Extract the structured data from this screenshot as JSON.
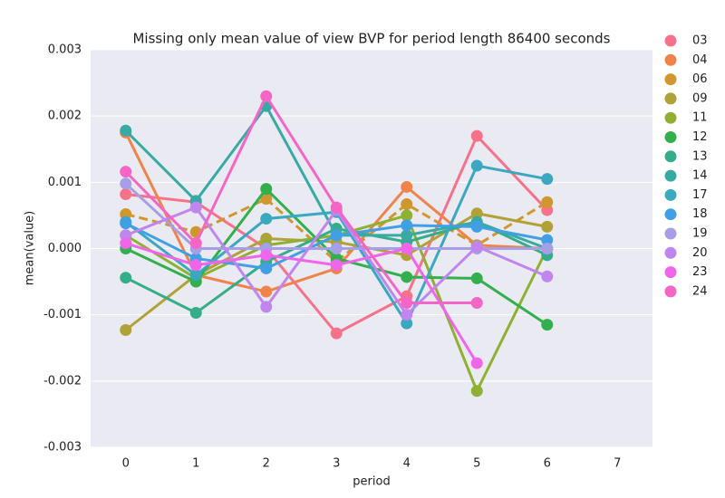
{
  "chart_data": {
    "type": "line",
    "title": "Missing only mean value of view BVP for period length 86400 seconds",
    "xlabel": "period",
    "ylabel": "mean(value)",
    "x": [
      0,
      1,
      2,
      3,
      4,
      5,
      6
    ],
    "xlim": [
      -0.5,
      7.5
    ],
    "xticks": [
      0,
      1,
      2,
      3,
      4,
      5,
      6,
      7
    ],
    "ylim": [
      -0.003,
      0.003
    ],
    "yticks": [
      -0.003,
      -0.002,
      -0.001,
      {
        "value": 0,
        "label": "0.000"
      },
      0.001,
      0.002,
      0.003
    ],
    "grid": true,
    "legend": "outside right",
    "series": [
      {
        "name": "03",
        "color": "#f77189",
        "values": [
          0.00082,
          0.0007,
          0.0,
          -0.00128,
          -0.00072,
          0.0017,
          0.00058
        ]
      },
      {
        "name": "04",
        "color": "#f0834a",
        "values": [
          0.00175,
          -0.0004,
          -0.00065,
          -0.0003,
          0.00093,
          5e-05,
          0.0
        ]
      },
      {
        "name": "06",
        "color": "#d0972f",
        "dashed": true,
        "values": [
          0.00052,
          0.00025,
          0.00075,
          -0.0002,
          0.00067,
          5e-05,
          0.0007
        ]
      },
      {
        "name": "09",
        "color": "#b0a236",
        "values": [
          -0.00123,
          -0.0004,
          0.00015,
          0.0001,
          -0.0001,
          0.00053,
          0.00033
        ]
      },
      {
        "name": "11",
        "color": "#8fb032",
        "values": [
          0.0002,
          -0.00045,
          5e-05,
          0.0002,
          0.0005,
          -0.00215,
          0.0
        ]
      },
      {
        "name": "12",
        "color": "#33b04e",
        "values": [
          0.0,
          -0.0005,
          0.0009,
          -0.00015,
          -0.00043,
          -0.00045,
          -0.00115
        ]
      },
      {
        "name": "13",
        "color": "#36ad8a",
        "values": [
          -0.00044,
          -0.00097,
          -0.0002,
          0.0003,
          0.0001,
          0.0004,
          -0.0001
        ]
      },
      {
        "name": "14",
        "color": "#38aaa4",
        "values": [
          0.00178,
          0.00072,
          0.00215,
          0.0002,
          0.0002,
          0.0004,
          0.0
        ]
      },
      {
        "name": "17",
        "color": "#3aa8c1",
        "values": [
          0.0004,
          -0.0004,
          0.00045,
          0.00055,
          -0.00113,
          0.00125,
          0.00105
        ]
      },
      {
        "name": "18",
        "color": "#41a0e5",
        "values": [
          0.00038,
          -0.00015,
          -0.0003,
          0.0002,
          0.00035,
          0.00033,
          0.00013
        ]
      },
      {
        "name": "19",
        "color": "#a79ee8",
        "values": [
          0.00098,
          0.0,
          0.0,
          0.0,
          0.0,
          0.0,
          0.0
        ]
      },
      {
        "name": "20",
        "color": "#c085ee",
        "values": [
          0.0002,
          0.00062,
          -0.00088,
          0.00058,
          -0.001,
          3e-05,
          -0.00042
        ]
      },
      {
        "name": "23",
        "color": "#f066ea",
        "values": [
          8e-05,
          -0.00025,
          -0.0001,
          -0.00025,
          0.0,
          -0.00173,
          null
        ]
      },
      {
        "name": "24",
        "color": "#f565c5",
        "values": [
          0.00116,
          8e-05,
          0.0023,
          0.00062,
          -0.00082,
          -0.00082,
          null
        ]
      }
    ]
  }
}
